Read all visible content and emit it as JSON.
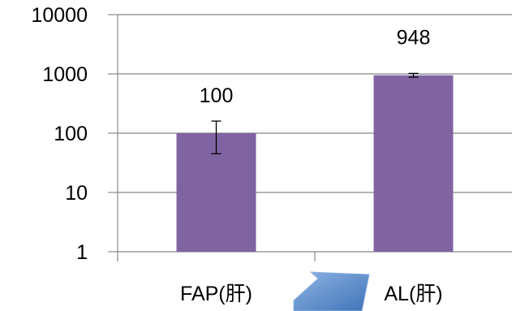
{
  "chart_data": {
    "type": "bar",
    "y_scale": "log",
    "ylim": [
      1,
      10000
    ],
    "y_ticks": [
      1,
      10,
      100,
      1000,
      10000
    ],
    "y_tick_labels": [
      "1",
      "10",
      "100",
      "1000",
      "10000"
    ],
    "grid": true,
    "categories": [
      "FAP(肝)",
      "AL(肝)"
    ],
    "values": [
      100,
      948
    ],
    "data_labels": [
      "100",
      "948"
    ],
    "error_bars": [
      {
        "low": 45,
        "high": 160
      },
      {
        "low": 880,
        "high": 1020
      }
    ],
    "bar_color": "#8064A2",
    "title": "",
    "xlabel": "",
    "ylabel": ""
  },
  "decoration": {
    "arrow_color": "#4F81BD",
    "arrow_icon": "arrow-icon"
  }
}
